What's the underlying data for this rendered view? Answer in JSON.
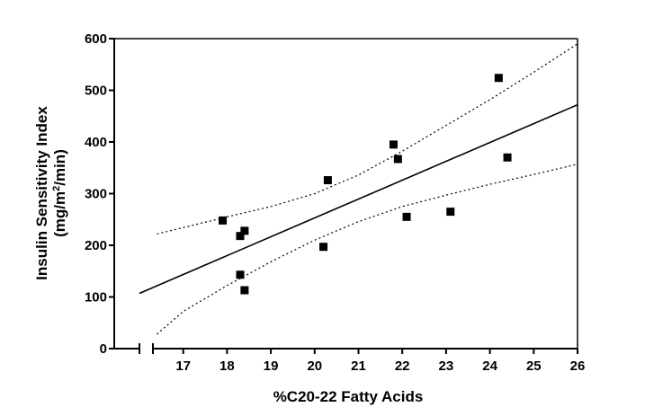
{
  "chart_data": {
    "type": "scatter",
    "xlabel": "%C20-22 Fatty Acids",
    "ylabel_line1": "Insulin Sensitivity Index",
    "ylabel_line2_parts": [
      "(mg/m",
      "2",
      "/min)"
    ],
    "xlim": [
      16,
      26
    ],
    "ylim": [
      0,
      600
    ],
    "x_axis_break": true,
    "x_ticks": [
      17,
      18,
      19,
      20,
      21,
      22,
      23,
      24,
      25,
      26
    ],
    "y_ticks": [
      0,
      100,
      200,
      300,
      400,
      500,
      600
    ],
    "grid": false,
    "legend": "none",
    "marker_color": "#000000",
    "points": [
      {
        "x": 17.9,
        "y": 248
      },
      {
        "x": 18.3,
        "y": 218
      },
      {
        "x": 18.4,
        "y": 228
      },
      {
        "x": 18.3,
        "y": 143
      },
      {
        "x": 18.4,
        "y": 113
      },
      {
        "x": 20.2,
        "y": 197
      },
      {
        "x": 20.3,
        "y": 326
      },
      {
        "x": 21.8,
        "y": 395
      },
      {
        "x": 21.9,
        "y": 367
      },
      {
        "x": 22.1,
        "y": 255
      },
      {
        "x": 23.1,
        "y": 265
      },
      {
        "x": 24.2,
        "y": 524
      },
      {
        "x": 24.4,
        "y": 370
      }
    ],
    "regression_line": {
      "style": "solid",
      "points": [
        [
          16.0,
          107
        ],
        [
          26.0,
          472
        ]
      ]
    },
    "confidence_bands": [
      {
        "name": "upper",
        "style": "dotted",
        "points": [
          [
            16.4,
            222
          ],
          [
            18,
            255
          ],
          [
            19,
            275
          ],
          [
            20,
            300
          ],
          [
            21,
            336
          ],
          [
            22,
            382
          ],
          [
            23,
            432
          ],
          [
            24,
            482
          ],
          [
            25,
            535
          ],
          [
            26,
            590
          ]
        ]
      },
      {
        "name": "lower",
        "style": "dotted",
        "points": [
          [
            16.4,
            28
          ],
          [
            17,
            72
          ],
          [
            18,
            122
          ],
          [
            19,
            168
          ],
          [
            20,
            210
          ],
          [
            21,
            246
          ],
          [
            22,
            275
          ],
          [
            23,
            297
          ],
          [
            24,
            318
          ],
          [
            25,
            337
          ],
          [
            26,
            357
          ]
        ]
      }
    ]
  }
}
